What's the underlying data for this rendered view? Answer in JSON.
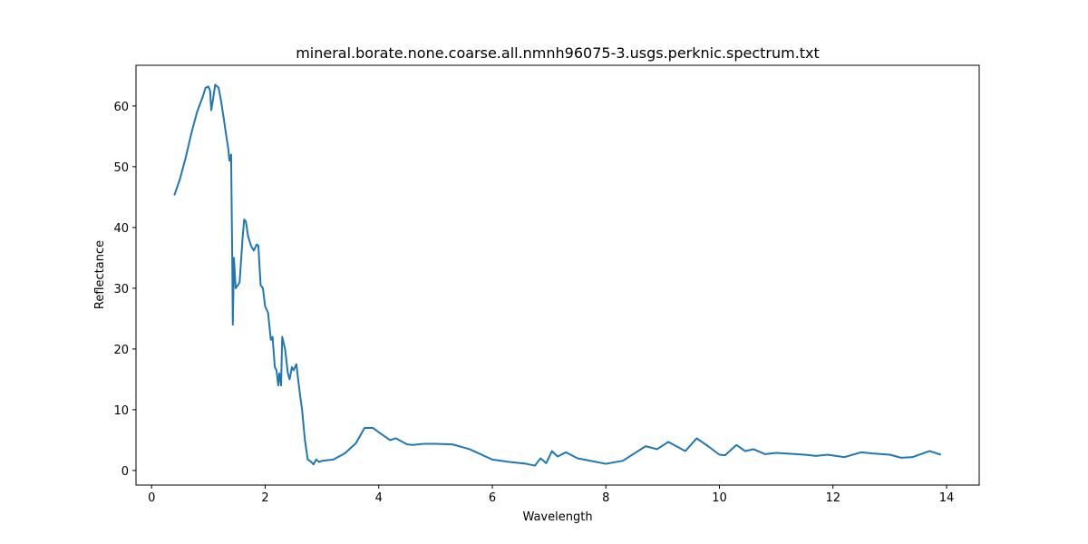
{
  "chart_data": {
    "type": "line",
    "title": "mineral.borate.none.coarse.all.nmnh96075-3.usgs.perknic.spectrum.txt",
    "xlabel": "Wavelength",
    "ylabel": "Reflectance",
    "xlim": [
      -0.275,
      14.575
    ],
    "ylim": [
      -2.4,
      66.7
    ],
    "xticks": [
      0,
      2,
      4,
      6,
      8,
      10,
      12,
      14
    ],
    "yticks": [
      0,
      10,
      20,
      30,
      40,
      50,
      60
    ],
    "series": [
      {
        "color": "#1f77b4",
        "x": [
          0.4,
          0.5,
          0.6,
          0.7,
          0.8,
          0.9,
          0.95,
          1.0,
          1.03,
          1.05,
          1.08,
          1.12,
          1.18,
          1.22,
          1.27,
          1.3,
          1.35,
          1.37,
          1.4,
          1.42,
          1.43,
          1.45,
          1.48,
          1.52,
          1.55,
          1.6,
          1.63,
          1.66,
          1.7,
          1.75,
          1.8,
          1.85,
          1.88,
          1.92,
          1.96,
          2.0,
          2.05,
          2.1,
          2.13,
          2.17,
          2.2,
          2.23,
          2.25,
          2.28,
          2.3,
          2.35,
          2.4,
          2.43,
          2.47,
          2.5,
          2.55,
          2.58,
          2.62,
          2.65,
          2.7,
          2.75,
          2.8,
          2.85,
          2.9,
          2.95,
          3.0,
          3.2,
          3.4,
          3.6,
          3.75,
          3.9,
          4.0,
          4.2,
          4.3,
          4.5,
          4.6,
          4.8,
          5.0,
          5.3,
          5.6,
          6.0,
          6.3,
          6.6,
          6.75,
          6.85,
          6.95,
          7.05,
          7.15,
          7.3,
          7.5,
          8.0,
          8.3,
          8.5,
          8.7,
          8.9,
          9.1,
          9.4,
          9.6,
          9.8,
          10.0,
          10.1,
          10.3,
          10.45,
          10.6,
          10.8,
          11.0,
          11.5,
          11.7,
          11.9,
          12.2,
          12.5,
          12.7,
          13.0,
          13.2,
          13.4,
          13.7,
          13.9
        ],
        "values": [
          45.3,
          48,
          51.5,
          55.5,
          59,
          61.5,
          63,
          63.2,
          62.5,
          59.3,
          61,
          63.5,
          63,
          61,
          58,
          56,
          53,
          51,
          52,
          35,
          24,
          35,
          30,
          30.5,
          31,
          38,
          41.3,
          41,
          38.5,
          37,
          36.2,
          37.2,
          37,
          30.5,
          30,
          27,
          26,
          21.5,
          22,
          17,
          16.5,
          14,
          16,
          14,
          22,
          20,
          16,
          15,
          17,
          16.5,
          17.5,
          15,
          12,
          10,
          5,
          1.8,
          1.5,
          1,
          1.8,
          1.4,
          1.6,
          1.8,
          2.8,
          4.5,
          7.0,
          7.0,
          6.3,
          5.0,
          5.3,
          4.3,
          4.2,
          4.4,
          4.4,
          4.3,
          3.5,
          1.8,
          1.4,
          1.1,
          0.8,
          2.0,
          1.2,
          3.2,
          2.3,
          3.0,
          2.0,
          1.1,
          1.6,
          2.8,
          4.0,
          3.5,
          4.7,
          3.2,
          5.3,
          4.0,
          2.6,
          2.5,
          4.2,
          3.2,
          3.5,
          2.7,
          2.9,
          2.6,
          2.4,
          2.6,
          2.2,
          3.0,
          2.8,
          2.6,
          2.1,
          2.2,
          3.2,
          2.6
        ]
      }
    ]
  }
}
